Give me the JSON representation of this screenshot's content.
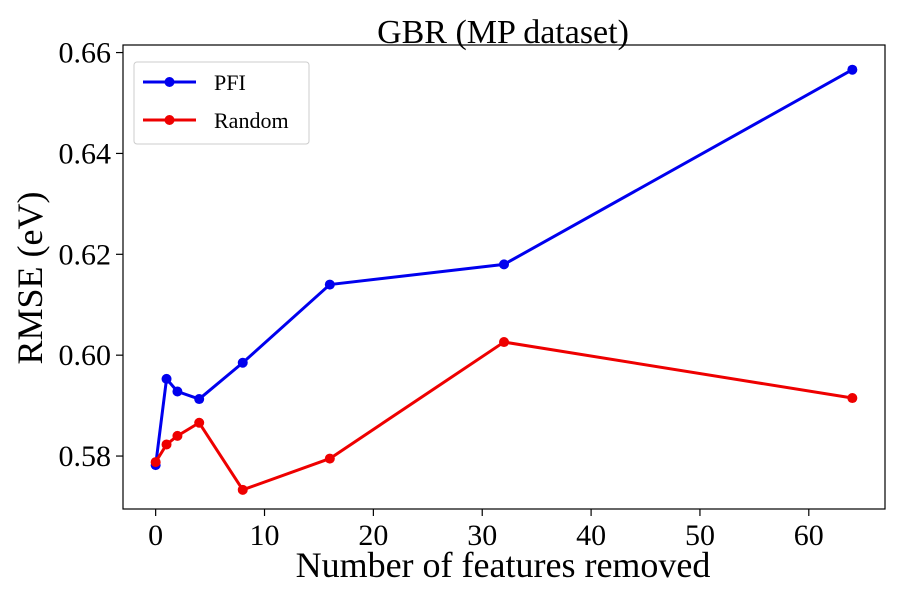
{
  "chart_data": {
    "type": "line",
    "title": "GBR (MP dataset)",
    "xlabel": "Number of features removed",
    "ylabel": "RMSE (eV)",
    "xlim": [
      -3,
      67
    ],
    "ylim": [
      0.5695,
      0.6615
    ],
    "xticks": [
      0,
      10,
      20,
      30,
      40,
      50,
      60
    ],
    "xtick_labels": [
      "0",
      "10",
      "20",
      "30",
      "40",
      "50",
      "60"
    ],
    "yticks": [
      0.58,
      0.6,
      0.62,
      0.64,
      0.66
    ],
    "ytick_labels": [
      "0.58",
      "0.60",
      "0.62",
      "0.64",
      "0.66"
    ],
    "grid": false,
    "legend_position": "top-left",
    "x": [
      0,
      1,
      2,
      4,
      8,
      16,
      32,
      64
    ],
    "series": [
      {
        "name": "PFI",
        "color": "#0000ee",
        "values": [
          0.5782,
          0.5953,
          0.5928,
          0.5913,
          0.5985,
          0.614,
          0.618,
          0.6566
        ]
      },
      {
        "name": "Random",
        "color": "#ee0000",
        "values": [
          0.5788,
          0.5823,
          0.584,
          0.5866,
          0.5733,
          0.5795,
          0.6026,
          0.5915
        ]
      }
    ]
  }
}
